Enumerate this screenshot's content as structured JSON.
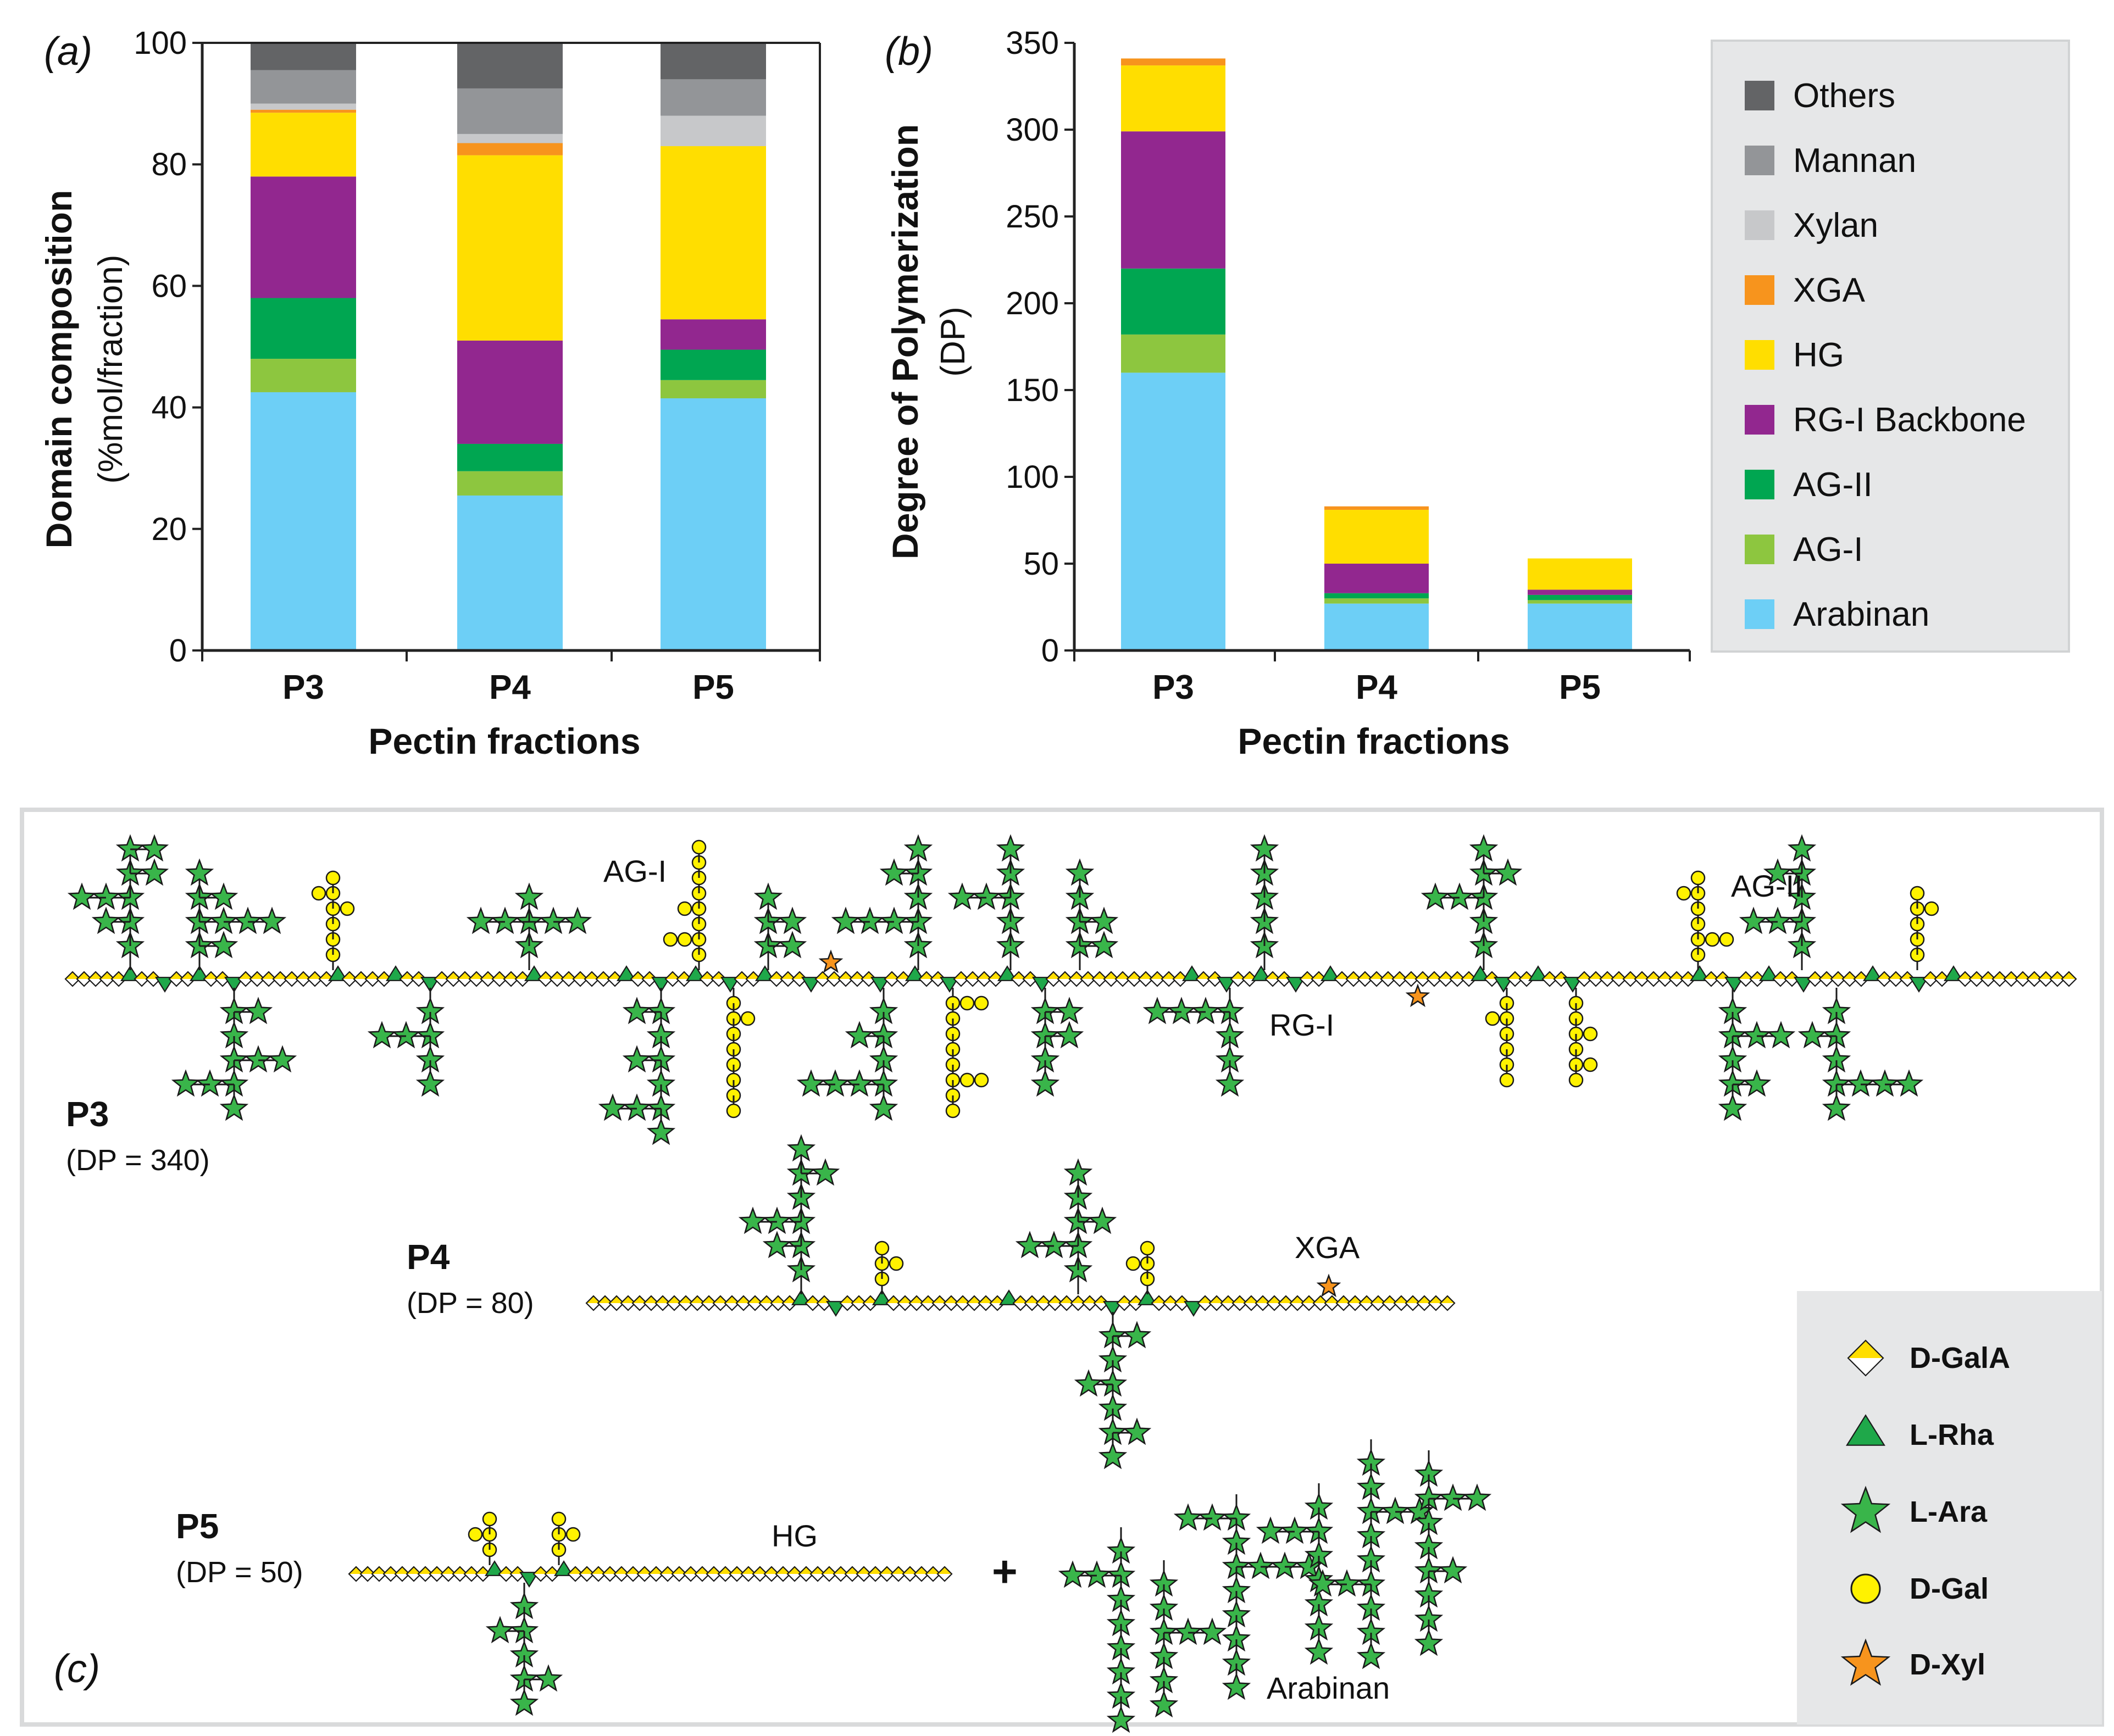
{
  "panels": {
    "a": "(a)",
    "b": "(b)",
    "c": "(c)"
  },
  "chart_data": [
    {
      "type": "bar",
      "stacked": true,
      "panel": "(a)",
      "ylabel": "Domain composition",
      "ylabel_unit": "(%mol/fraction)",
      "xlabel": "Pectin fractions",
      "categories": [
        "P3",
        "P4",
        "P5"
      ],
      "ylim": [
        0,
        100
      ],
      "yticks": [
        0,
        20,
        40,
        60,
        80,
        100
      ],
      "series": [
        {
          "name": "Arabinan",
          "color": "#6DCFF6",
          "values": [
            42.5,
            25.5,
            41.5
          ]
        },
        {
          "name": "AG-I",
          "color": "#8DC63F",
          "values": [
            5.5,
            4.0,
            3.0
          ]
        },
        {
          "name": "AG-II",
          "color": "#00A651",
          "values": [
            10.0,
            4.5,
            5.0
          ]
        },
        {
          "name": "RG-I Backbone",
          "color": "#92278F",
          "values": [
            20.0,
            17.0,
            5.0
          ]
        },
        {
          "name": "HG",
          "color": "#FFDE00",
          "values": [
            10.5,
            30.5,
            28.5
          ]
        },
        {
          "name": "XGA",
          "color": "#F7941D",
          "values": [
            0.5,
            2.0,
            0.0
          ]
        },
        {
          "name": "Xylan",
          "color": "#C7C8CA",
          "values": [
            1.0,
            1.5,
            5.0
          ]
        },
        {
          "name": "Mannan",
          "color": "#939598",
          "values": [
            5.5,
            7.5,
            6.0
          ]
        },
        {
          "name": "Others",
          "color": "#636466",
          "values": [
            4.5,
            7.5,
            6.0
          ]
        }
      ]
    },
    {
      "type": "bar",
      "stacked": true,
      "panel": "(b)",
      "ylabel": "Degree of Polymerization",
      "ylabel_unit": "(DP)",
      "xlabel": "Pectin fractions",
      "categories": [
        "P3",
        "P4",
        "P5"
      ],
      "ylim": [
        0,
        350
      ],
      "yticks": [
        0,
        50,
        100,
        150,
        200,
        250,
        300,
        350
      ],
      "series": [
        {
          "name": "Arabinan",
          "color": "#6DCFF6",
          "values": [
            160,
            27,
            27
          ]
        },
        {
          "name": "AG-I",
          "color": "#8DC63F",
          "values": [
            22,
            3,
            2
          ]
        },
        {
          "name": "AG-II",
          "color": "#00A651",
          "values": [
            38,
            3,
            3
          ]
        },
        {
          "name": "RG-I Backbone",
          "color": "#92278F",
          "values": [
            79,
            17,
            3
          ]
        },
        {
          "name": "HG",
          "color": "#FFDE00",
          "values": [
            38,
            31,
            18
          ]
        },
        {
          "name": "XGA",
          "color": "#F7941D",
          "values": [
            4,
            2,
            0
          ]
        },
        {
          "name": "Xylan",
          "color": "#C7C8CA",
          "values": [
            0,
            0,
            0
          ]
        },
        {
          "name": "Mannan",
          "color": "#939598",
          "values": [
            0,
            0,
            0
          ]
        },
        {
          "name": "Others",
          "color": "#636466",
          "values": [
            0,
            0,
            0
          ]
        }
      ]
    }
  ],
  "legend_order": [
    "Others",
    "Mannan",
    "Xylan",
    "XGA",
    "HG",
    "RG-I Backbone",
    "AG-II",
    "AG-I",
    "Arabinan"
  ],
  "legend_colors": {
    "Others": "#636466",
    "Mannan": "#939598",
    "Xylan": "#C7C8CA",
    "XGA": "#F7941D",
    "HG": "#FFDE00",
    "RG-I Backbone": "#92278F",
    "AG-II": "#00A651",
    "AG-I": "#8DC63F",
    "Arabinan": "#6DCFF6"
  },
  "schematic": {
    "p3": {
      "name": "P3",
      "dp": "(DP = 340)"
    },
    "p4": {
      "name": "P4",
      "dp": "(DP = 80)"
    },
    "p5": {
      "name": "P5",
      "dp": "(DP = 50)"
    },
    "labels": {
      "ag1": "AG-I",
      "ag2": "AG-II",
      "rg1": "RG-I",
      "xga": "XGA",
      "hg": "HG",
      "arabinan": "Arabinan",
      "plus": "+"
    },
    "key": [
      {
        "symbol": "diamond-icon",
        "label": "D-GalA"
      },
      {
        "symbol": "triangle-icon",
        "label": "L-Rha"
      },
      {
        "symbol": "star-icon",
        "label": "L-Ara"
      },
      {
        "symbol": "circle-icon",
        "label": "D-Gal"
      },
      {
        "symbol": "orange-star-icon",
        "label": "D-Xyl"
      }
    ],
    "colors": {
      "galA": "#FFDE00",
      "rha": "#1FA84A",
      "ara": "#39B54A",
      "gal": "#FFF200",
      "xyl": "#F7941D",
      "panel_bg": "#E6E7E8"
    }
  }
}
